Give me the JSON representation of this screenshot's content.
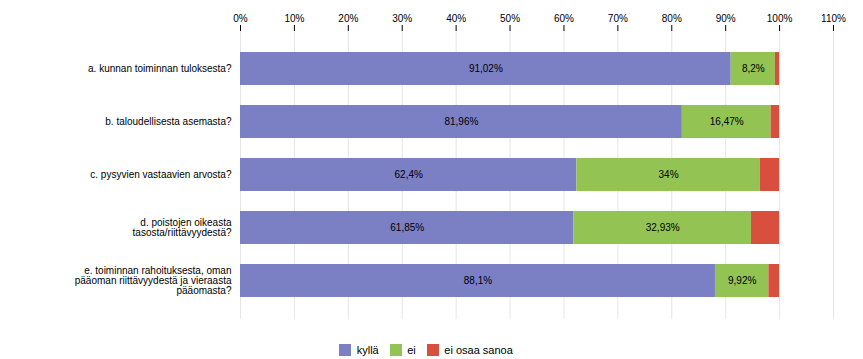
{
  "chart_data": {
    "type": "bar",
    "orientation": "horizontal",
    "stacked": true,
    "categories": [
      "a. kunnan toiminnan tuloksesta?",
      "b. taloudellisesta asemasta?",
      "c. pysyvien vastaavien arvosta?",
      "d. poistojen oikeasta\ntasosta/riittävyydestä?",
      "e. toiminnan rahoituksesta, oman\npääoman riittävyydestä ja vieraasta\npääomasta?"
    ],
    "series": [
      {
        "name": "kyllä",
        "color": "#7b7fc4",
        "values": [
          91.02,
          81.96,
          62.4,
          61.85,
          88.1
        ],
        "value_labels": [
          "91,02%",
          "81,96%",
          "62,4%",
          "61,85%",
          "88,1%"
        ]
      },
      {
        "name": "ei",
        "color": "#92c353",
        "values": [
          8.2,
          16.47,
          34.0,
          32.93,
          9.92
        ],
        "value_labels": [
          "8,2%",
          "16,47%",
          "34%",
          "32,93%",
          "9,92%"
        ]
      },
      {
        "name": "ei osaa sanoa",
        "color": "#d94f3d",
        "values": [
          0.78,
          1.57,
          3.6,
          5.22,
          1.98
        ]
      }
    ],
    "xlim": [
      0,
      110
    ],
    "xticks": [
      {
        "value": 0,
        "label": "0%"
      },
      {
        "value": 10,
        "label": "10%"
      },
      {
        "value": 20,
        "label": "20%"
      },
      {
        "value": 30,
        "label": "30%"
      },
      {
        "value": 40,
        "label": "40%"
      },
      {
        "value": 50,
        "label": "50%"
      },
      {
        "value": 60,
        "label": "60%"
      },
      {
        "value": 70,
        "label": "70%"
      },
      {
        "value": 80,
        "label": "80%"
      },
      {
        "value": 90,
        "label": "90%"
      },
      {
        "value": 100,
        "label": "100%"
      },
      {
        "value": 110,
        "label": "110%"
      }
    ],
    "grid": true,
    "data_labels": true,
    "legend": "bottom"
  }
}
